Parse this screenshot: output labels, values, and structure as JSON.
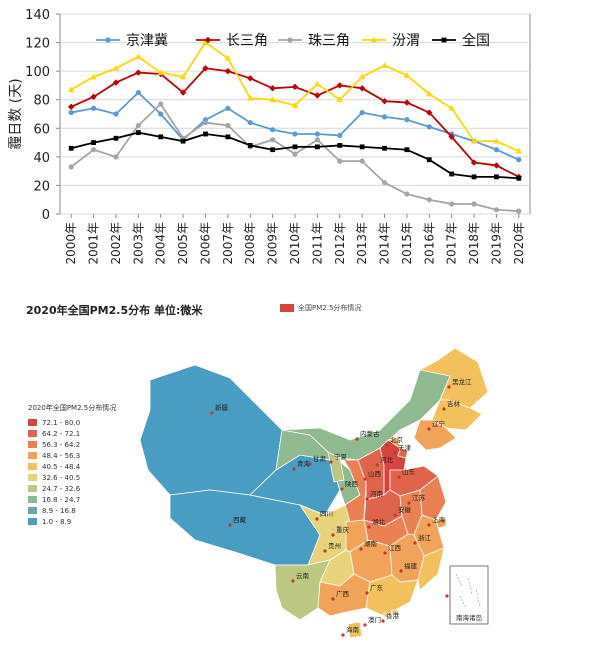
{
  "chart_data": [
    {
      "type": "line",
      "ylabel": "霾日数 (天)",
      "ylim": [
        0,
        140
      ],
      "yticks": [
        0,
        20,
        40,
        60,
        80,
        100,
        120,
        140
      ],
      "x": [
        "2000年",
        "2001年",
        "2002年",
        "2003年",
        "2004年",
        "2005年",
        "2006年",
        "2007年",
        "2008年",
        "2009年",
        "2010年",
        "2011年",
        "2012年",
        "2013年",
        "2014年",
        "2015年",
        "2016年",
        "2017年",
        "2018年",
        "2019年",
        "2020年"
      ],
      "legend_position": "top",
      "series": [
        {
          "name": "京津冀",
          "color": "#5b9bd5",
          "marker": "circle",
          "values": [
            71,
            74,
            70,
            85,
            70,
            52,
            66,
            74,
            64,
            59,
            56,
            56,
            55,
            71,
            68,
            66,
            61,
            56,
            51,
            45,
            38
          ]
        },
        {
          "name": "长三角",
          "color": "#c00000",
          "marker": "diamond",
          "values": [
            75,
            82,
            92,
            99,
            98,
            85,
            102,
            100,
            95,
            88,
            89,
            83,
            90,
            88,
            79,
            78,
            71,
            54,
            36,
            34,
            26
          ]
        },
        {
          "name": "珠三角",
          "color": "#a5a5a5",
          "marker": "circle",
          "values": [
            33,
            45,
            40,
            62,
            77,
            53,
            64,
            62,
            47,
            52,
            42,
            52,
            37,
            37,
            22,
            14,
            10,
            7,
            7,
            3,
            2
          ]
        },
        {
          "name": "汾渭",
          "color": "#ffd700",
          "marker": "triangle",
          "values": [
            87,
            96,
            102,
            110,
            99,
            96,
            120,
            109,
            81,
            80,
            76,
            91,
            80,
            96,
            104,
            97,
            84,
            74,
            51,
            51,
            44
          ]
        },
        {
          "name": "全国",
          "color": "#000000",
          "marker": "square",
          "values": [
            46,
            50,
            53,
            57,
            54,
            51,
            56,
            54,
            48,
            45,
            47,
            47,
            48,
            47,
            46,
            45,
            38,
            28,
            26,
            26,
            25
          ]
        }
      ]
    },
    {
      "type": "map",
      "title": "2020年全国PM2.5分布 单位:微米",
      "legend_label": "全国PM2.5分布情况",
      "scale_title": "2020年全国PM2.5分布情况",
      "bins": [
        {
          "label": "72.1 - 80.0",
          "color": "#d7443f"
        },
        {
          "label": "64.2 - 72.1",
          "color": "#e0634b"
        },
        {
          "label": "56.3 - 64.2",
          "color": "#ea8152"
        },
        {
          "label": "48.4 - 56.3",
          "color": "#f2a35a"
        },
        {
          "label": "40.5 - 48.4",
          "color": "#f2c15e"
        },
        {
          "label": "32.6 - 40.5",
          "color": "#e7d37a"
        },
        {
          "label": "24.7 - 32.6",
          "color": "#bcc882"
        },
        {
          "label": "16.8 - 24.7",
          "color": "#8fb98e"
        },
        {
          "label": "8.9 - 16.8",
          "color": "#67a8a4"
        },
        {
          "label": "1.0 - 8.9",
          "color": "#4a9dc2"
        }
      ],
      "provinces": [
        {
          "name": "新疆",
          "bin": 9
        },
        {
          "name": "西藏",
          "bin": 9
        },
        {
          "name": "青海",
          "bin": 9
        },
        {
          "name": "甘肃",
          "bin": 7
        },
        {
          "name": "内蒙古",
          "bin": 7
        },
        {
          "name": "黑龙江",
          "bin": 4
        },
        {
          "name": "吉林",
          "bin": 4
        },
        {
          "name": "辽宁",
          "bin": 3
        },
        {
          "name": "宁夏",
          "bin": 6
        },
        {
          "name": "陕西",
          "bin": 2
        },
        {
          "name": "山西",
          "bin": 1
        },
        {
          "name": "北京",
          "bin": 3
        },
        {
          "name": "天津",
          "bin": 1
        },
        {
          "name": "河北",
          "bin": 0
        },
        {
          "name": "山东",
          "bin": 1
        },
        {
          "name": "河南",
          "bin": 1
        },
        {
          "name": "四川",
          "bin": 5
        },
        {
          "name": "重庆",
          "bin": 3
        },
        {
          "name": "湖北",
          "bin": 2
        },
        {
          "name": "安徽",
          "bin": 2
        },
        {
          "name": "江苏",
          "bin": 2
        },
        {
          "name": "上海",
          "bin": 3
        },
        {
          "name": "浙江",
          "bin": 3
        },
        {
          "name": "湖南",
          "bin": 3
        },
        {
          "name": "江西",
          "bin": 3
        },
        {
          "name": "贵州",
          "bin": 5
        },
        {
          "name": "云南",
          "bin": 6
        },
        {
          "name": "广西",
          "bin": 3
        },
        {
          "name": "广东",
          "bin": 4
        },
        {
          "name": "福建",
          "bin": 4
        },
        {
          "name": "台湾",
          "bin": 7
        },
        {
          "name": "海南",
          "bin": 4
        },
        {
          "name": "香港",
          "bin": 4
        },
        {
          "name": "澳门",
          "bin": 4
        }
      ],
      "inset_label": "南海诸岛"
    }
  ]
}
